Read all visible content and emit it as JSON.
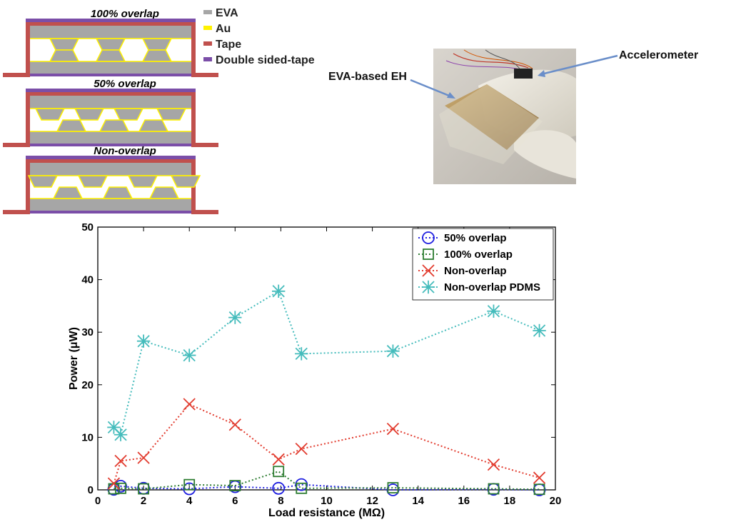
{
  "figure": {
    "structures": [
      {
        "title": "100% overlap",
        "pattern": "full"
      },
      {
        "title": "50% overlap",
        "pattern": "half"
      },
      {
        "title": "Non-overlap",
        "pattern": "none"
      }
    ],
    "materials_legend": [
      {
        "label": "EVA",
        "color": "#a6a6a6"
      },
      {
        "label": "Au",
        "color": "#fff200"
      },
      {
        "label": "Tape",
        "color": "#c0504d"
      },
      {
        "label": "Double sided-tape",
        "color": "#7b4ea8"
      }
    ],
    "photo": {
      "labels": {
        "eh": "EVA-based EH",
        "accelerometer": "Accelerometer"
      }
    }
  },
  "chart_data": {
    "type": "line",
    "title": "",
    "xlabel": "Load resistance (MΩ)",
    "ylabel": "Power (μW)",
    "xlim": [
      0,
      20
    ],
    "ylim": [
      0,
      50
    ],
    "xticks": [
      "0",
      "2",
      "4",
      "6",
      "8",
      "10",
      "12",
      "14",
      "16",
      "18",
      "20"
    ],
    "yticks": [
      "0",
      "10",
      "20",
      "30",
      "40",
      "50"
    ],
    "grid": false,
    "legend_position": "top-right",
    "series": [
      {
        "name": "50% overlap",
        "color": "#1f1fe0",
        "marker": "circle",
        "x": [
          0.7,
          1.0,
          2.0,
          4.0,
          6.0,
          7.9,
          8.9,
          12.9,
          17.3,
          19.3
        ],
        "y": [
          0.1,
          0.7,
          0.3,
          0.2,
          0.6,
          0.3,
          1.0,
          0.0,
          0.1,
          0.0
        ]
      },
      {
        "name": "100% overlap",
        "color": "#2e7d32",
        "marker": "square",
        "x": [
          0.7,
          1.0,
          2.0,
          4.0,
          6.0,
          7.9,
          8.9,
          12.9,
          17.3,
          19.3
        ],
        "y": [
          0.2,
          0.3,
          0.2,
          1.0,
          0.8,
          3.5,
          0.3,
          0.4,
          0.2,
          0.1
        ]
      },
      {
        "name": "Non-overlap",
        "color": "#e23b2e",
        "marker": "x",
        "x": [
          0.7,
          1.0,
          2.0,
          4.0,
          6.0,
          7.9,
          8.9,
          12.9,
          17.3,
          19.3
        ],
        "y": [
          1.2,
          5.5,
          6.1,
          16.3,
          12.4,
          5.8,
          7.8,
          11.6,
          4.8,
          2.3
        ]
      },
      {
        "name": "Non-overlap PDMS",
        "color": "#45bcbc",
        "marker": "asterisk",
        "x": [
          0.7,
          1.0,
          2.0,
          4.0,
          6.0,
          7.9,
          8.9,
          12.9,
          17.3,
          19.3
        ],
        "y": [
          11.9,
          10.5,
          28.3,
          25.6,
          32.8,
          37.8,
          25.9,
          26.4,
          34.0,
          30.3
        ]
      }
    ]
  }
}
